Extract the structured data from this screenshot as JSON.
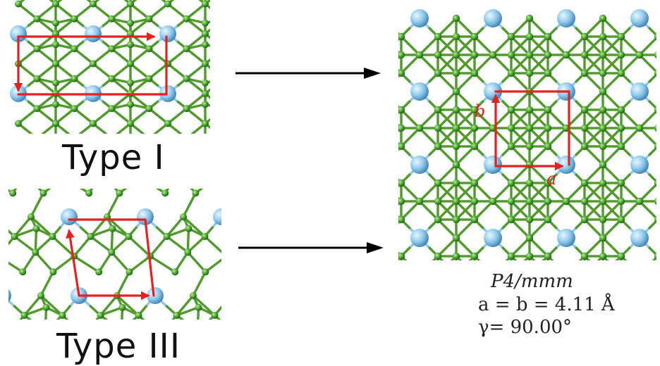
{
  "panels": {
    "type_i": {
      "label": "Type I"
    },
    "type_iii": {
      "label": "Type III"
    },
    "result": {
      "vector_a": "a",
      "vector_b": "b",
      "space_group": "P4/mmm",
      "lattice_constant": "a = b = 4.11 Å",
      "angle": "γ=  90.00°"
    }
  },
  "colors": {
    "bond": "#4f9a2a",
    "small_atom": "#3f9a2c",
    "large_atom": "#8cc8ec",
    "cell": "#e52020",
    "arrow": "#000000"
  }
}
